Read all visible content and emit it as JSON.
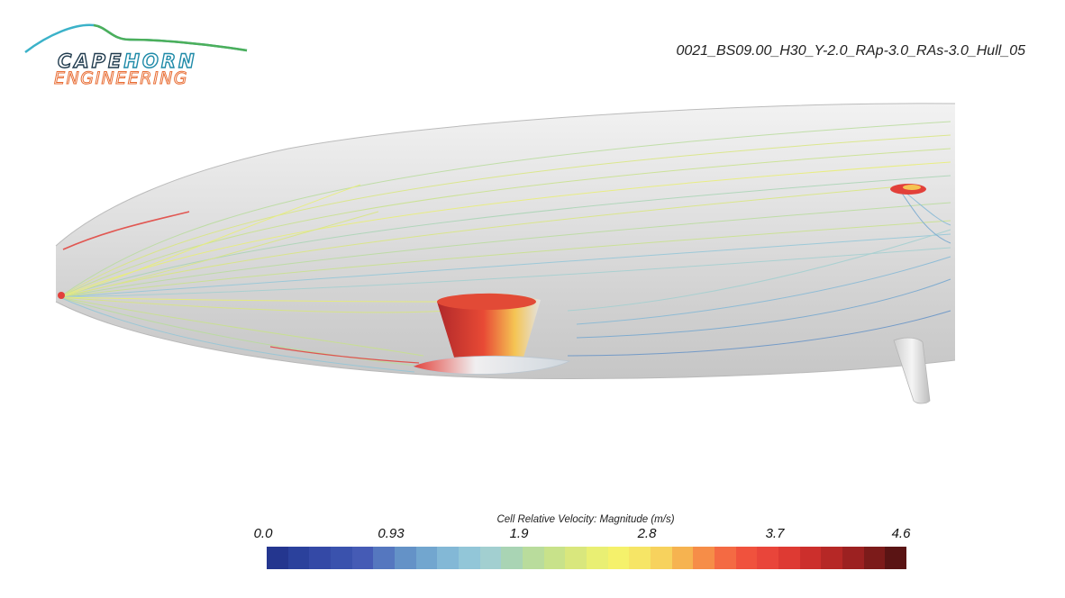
{
  "brand": {
    "word1_a": "CAPE",
    "word1_b": "HORN",
    "word2": "ENGINEERING"
  },
  "run_title": "0021_BS09.00_H30_Y-2.0_RAp-3.0_RAs-3.0_Hull_05",
  "legend": {
    "title": "Cell Relative Velocity: Magnitude (m/s)",
    "ticks": [
      "0.0",
      "0.93",
      "1.9",
      "2.8",
      "3.7",
      "4.6"
    ],
    "colors": [
      "#24368f",
      "#2b419c",
      "#3449a6",
      "#3a52ad",
      "#455bb5",
      "#5577bf",
      "#6492c7",
      "#72a6cf",
      "#83b8d6",
      "#92c6d8",
      "#a2cfd0",
      "#a9d4b4",
      "#b9dc9c",
      "#c8e28a",
      "#d9e77d",
      "#e9ef73",
      "#f5f16b",
      "#f6e566",
      "#f7d25d",
      "#f6b350",
      "#f68d48",
      "#f46a43",
      "#f0523d",
      "#e9453a",
      "#de3a33",
      "#cc2f2c",
      "#b62826",
      "#9c2121",
      "#7c1b1a",
      "#5a1414"
    ]
  },
  "colors": {
    "hull": "#d9d9d9",
    "logo_teal": "#3bb2c9",
    "logo_green": "#4caf5a",
    "logo_dark": "#1f3a4d",
    "logo_orange": "#e86d34"
  }
}
